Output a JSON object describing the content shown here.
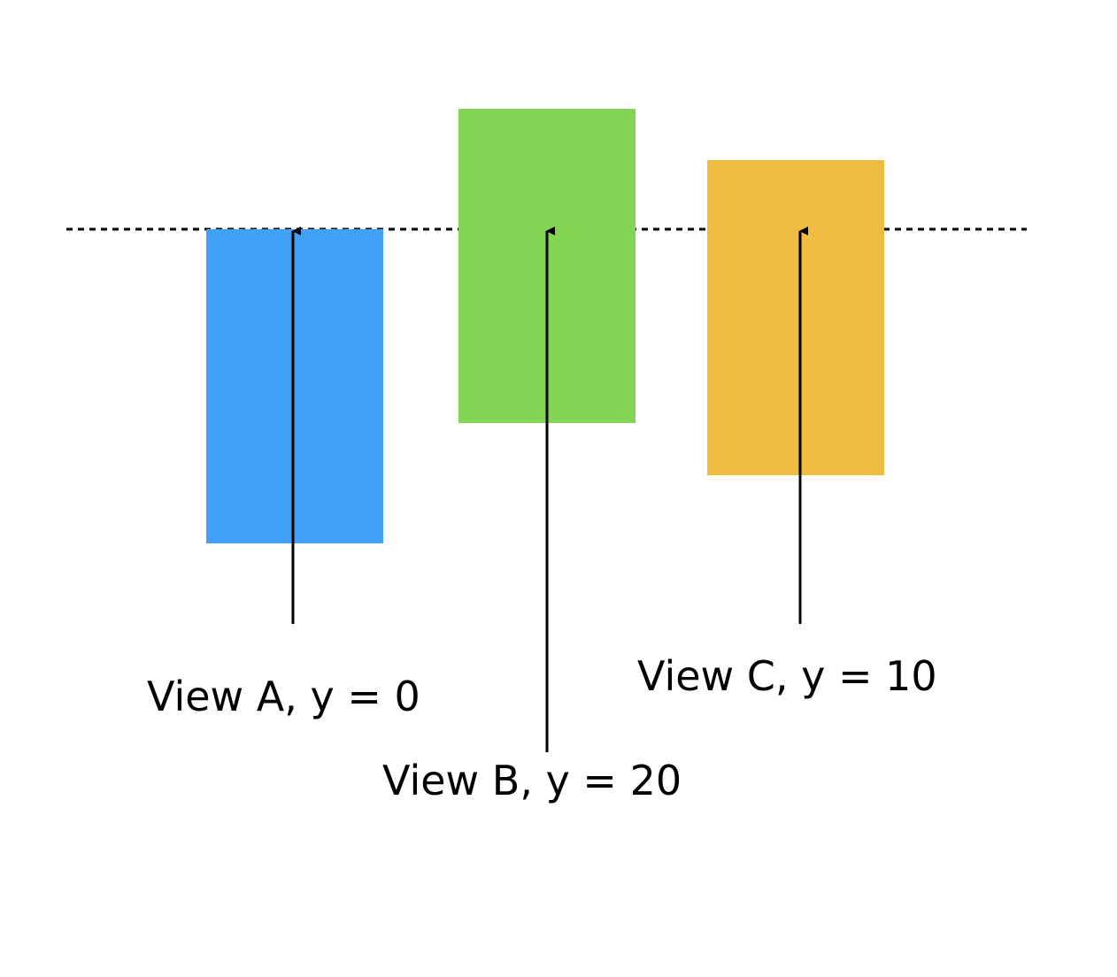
{
  "views": [
    {
      "name": "View A",
      "label": "View A, y = 0",
      "y": 0,
      "color": "#42A0F7"
    },
    {
      "name": "View B",
      "label": "View B, y = 20",
      "y": 20,
      "color": "#83D452"
    },
    {
      "name": "View C",
      "label": "View C, y = 10",
      "y": 10,
      "color": "#EFBB41"
    }
  ],
  "colors": {
    "line": "#000000",
    "background": "#ffffff"
  }
}
